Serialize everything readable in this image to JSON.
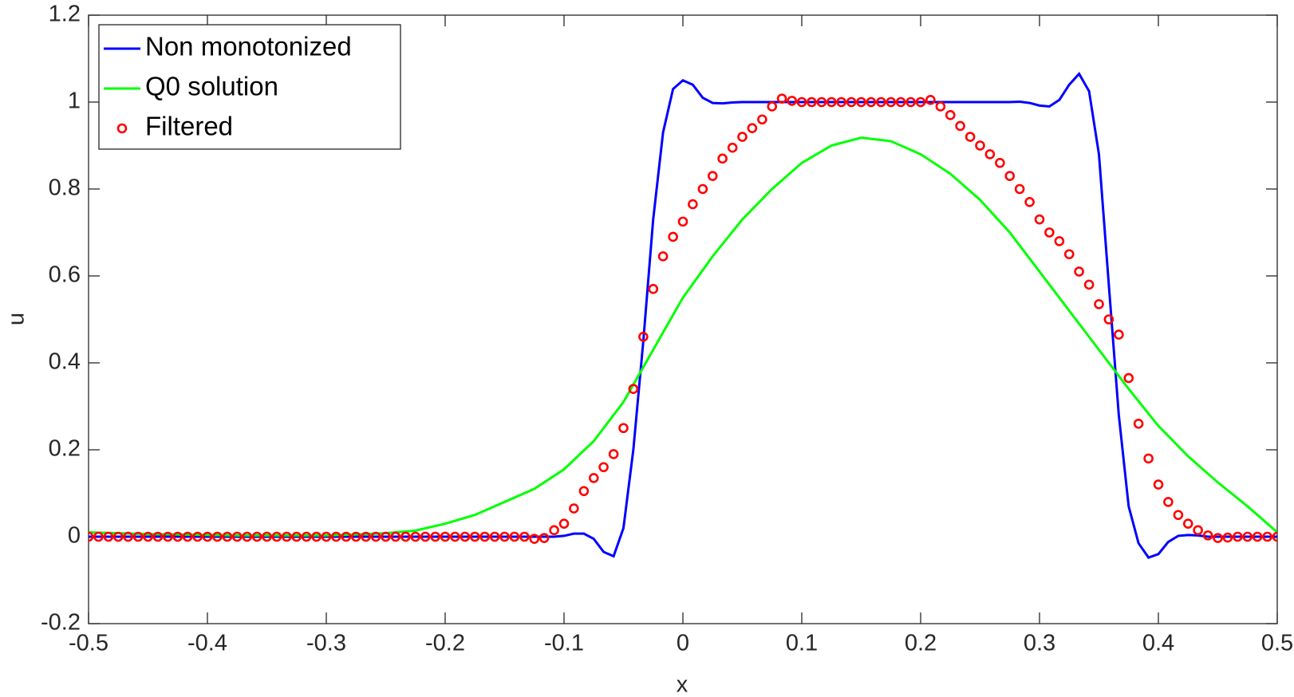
{
  "chart_data": {
    "type": "line",
    "xlabel": "x",
    "ylabel": "u",
    "xlim": [
      -0.5,
      0.5
    ],
    "xticks": [
      -0.5,
      -0.4,
      -0.3,
      -0.2,
      -0.1,
      0,
      0.1,
      0.2,
      0.3,
      0.4,
      0.5
    ],
    "ylim": [
      -0.2,
      1.2
    ],
    "yticks": [
      -0.2,
      0,
      0.2,
      0.4,
      0.6,
      0.8,
      1,
      1.2
    ],
    "grid": false,
    "legend": "top-left",
    "x": [
      -0.5,
      -0.4917,
      -0.4833,
      -0.475,
      -0.4667,
      -0.4583,
      -0.45,
      -0.4417,
      -0.4333,
      -0.425,
      -0.4167,
      -0.4083,
      -0.4,
      -0.3917,
      -0.3833,
      -0.375,
      -0.3667,
      -0.3583,
      -0.35,
      -0.3417,
      -0.3333,
      -0.325,
      -0.3167,
      -0.3083,
      -0.3,
      -0.2917,
      -0.2833,
      -0.275,
      -0.2667,
      -0.2583,
      -0.25,
      -0.2417,
      -0.2333,
      -0.225,
      -0.2167,
      -0.2083,
      -0.2,
      -0.1917,
      -0.1833,
      -0.175,
      -0.1667,
      -0.1583,
      -0.15,
      -0.1417,
      -0.1333,
      -0.125,
      -0.1167,
      -0.1083,
      -0.1,
      -0.0917,
      -0.0833,
      -0.075,
      -0.0667,
      -0.0583,
      -0.05,
      -0.0417,
      -0.0333,
      -0.025,
      -0.0167,
      -0.0083,
      0,
      0.0083,
      0.0167,
      0.025,
      0.0333,
      0.0417,
      0.05,
      0.0583,
      0.0667,
      0.075,
      0.0833,
      0.0917,
      0.1,
      0.1083,
      0.1167,
      0.125,
      0.1333,
      0.1417,
      0.15,
      0.1583,
      0.1667,
      0.175,
      0.1833,
      0.1917,
      0.2,
      0.2083,
      0.2167,
      0.225,
      0.2333,
      0.2417,
      0.25,
      0.2583,
      0.2667,
      0.275,
      0.2833,
      0.2917,
      0.3,
      0.3083,
      0.3167,
      0.325,
      0.3333,
      0.3417,
      0.35,
      0.3583,
      0.3667,
      0.375,
      0.3833,
      0.3917,
      0.4,
      0.4083,
      0.4167,
      0.425,
      0.4333,
      0.4417,
      0.45,
      0.4583,
      0.4667,
      0.475,
      0.4833,
      0.4917,
      0.5
    ],
    "series": [
      {
        "name": "Non monotonized",
        "color": "#0000ff",
        "style": "line",
        "values": [
          0,
          0,
          0,
          0,
          0,
          0,
          0,
          0,
          0,
          0,
          0,
          0,
          0,
          0,
          0,
          0,
          0,
          0,
          0,
          0,
          0,
          0,
          0,
          0,
          0,
          0,
          0,
          0,
          0,
          0,
          0,
          0,
          0,
          0,
          0,
          0,
          0,
          0,
          0,
          0,
          0,
          0,
          0,
          0,
          0,
          0,
          0,
          0,
          0.002,
          0.007,
          0.007,
          -0.005,
          -0.035,
          -0.045,
          0.02,
          0.2,
          0.45,
          0.73,
          0.93,
          1.03,
          1.05,
          1.04,
          1.01,
          0.998,
          0.997,
          0.999,
          1,
          1,
          1,
          1,
          1,
          1,
          1,
          1,
          1,
          1,
          1,
          1,
          1,
          1,
          1,
          1,
          1,
          1,
          1,
          1,
          1,
          1,
          1,
          1,
          1,
          1,
          1,
          1,
          1.001,
          0.998,
          0.992,
          0.99,
          1.005,
          1.04,
          1.065,
          1.025,
          0.88,
          0.58,
          0.28,
          0.07,
          -0.015,
          -0.048,
          -0.04,
          -0.012,
          0.002,
          0.004,
          0.003,
          0,
          0,
          0,
          0,
          0,
          0,
          0,
          0
        ]
      },
      {
        "name": "Q0 solution",
        "color": "#00ff00",
        "style": "line",
        "x": [
          -0.5,
          -0.475,
          -0.45,
          -0.425,
          -0.4,
          -0.375,
          -0.35,
          -0.325,
          -0.3,
          -0.275,
          -0.25,
          -0.225,
          -0.2,
          -0.175,
          -0.15,
          -0.125,
          -0.1,
          -0.075,
          -0.05,
          -0.025,
          0,
          0.025,
          0.05,
          0.075,
          0.1,
          0.125,
          0.15,
          0.175,
          0.2,
          0.225,
          0.25,
          0.275,
          0.3,
          0.325,
          0.35,
          0.375,
          0.4,
          0.425,
          0.45,
          0.475,
          0.5
        ],
        "values": [
          0.01,
          0.008,
          0.006,
          0.005,
          0.004,
          0.003,
          0.003,
          0.003,
          0.003,
          0.005,
          0.008,
          0.014,
          0.03,
          0.05,
          0.08,
          0.11,
          0.155,
          0.22,
          0.31,
          0.43,
          0.55,
          0.645,
          0.73,
          0.8,
          0.86,
          0.9,
          0.918,
          0.91,
          0.88,
          0.835,
          0.775,
          0.7,
          0.61,
          0.52,
          0.43,
          0.34,
          0.255,
          0.185,
          0.125,
          0.07,
          0.01
        ]
      },
      {
        "name": "Filtered",
        "color": "#ff0000",
        "style": "markers",
        "values": [
          0,
          0,
          0,
          0,
          0,
          0,
          0,
          0,
          0,
          0,
          0,
          0,
          0,
          0,
          0,
          0,
          0,
          0,
          0,
          0,
          0,
          0,
          0,
          0,
          0,
          0,
          0,
          0,
          0,
          0,
          0,
          0,
          0,
          0,
          0,
          0,
          0,
          0,
          0,
          0,
          0,
          0,
          0,
          0,
          0,
          -0.005,
          -0.003,
          0.015,
          0.03,
          0.065,
          0.105,
          0.135,
          0.16,
          0.19,
          0.25,
          0.34,
          0.46,
          0.57,
          0.645,
          0.69,
          0.725,
          0.765,
          0.8,
          0.83,
          0.87,
          0.895,
          0.92,
          0.94,
          0.96,
          0.99,
          1.008,
          1.003,
          1,
          1,
          1,
          1,
          1,
          1,
          1,
          1,
          1,
          1,
          1,
          1,
          1,
          1.005,
          0.99,
          0.97,
          0.945,
          0.92,
          0.9,
          0.88,
          0.86,
          0.83,
          0.8,
          0.77,
          0.73,
          0.7,
          0.68,
          0.65,
          0.61,
          0.58,
          0.535,
          0.5,
          0.465,
          0.365,
          0.26,
          0.18,
          0.12,
          0.08,
          0.05,
          0.03,
          0.015,
          0.003,
          -0.003,
          -0.002,
          0,
          0,
          0,
          0,
          0
        ]
      }
    ]
  }
}
